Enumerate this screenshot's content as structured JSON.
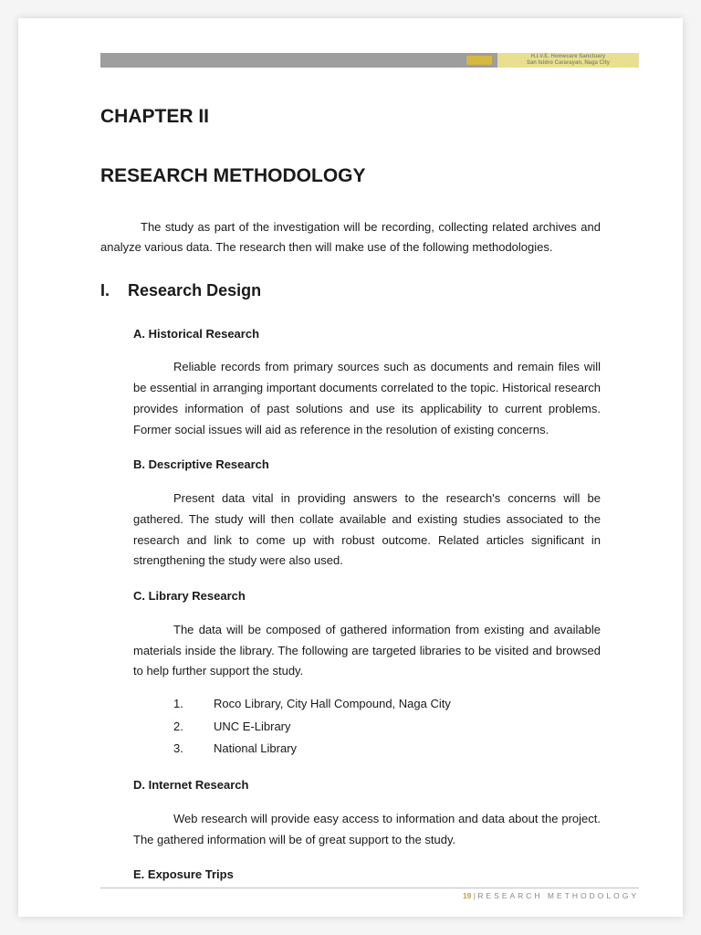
{
  "header": {
    "line1": "H.I.V.E. Homecare Sanctuary",
    "line2": "San Isidro Cararayan, Naga City"
  },
  "chapter": "CHAPTER II",
  "title": "RESEARCH METHODOLOGY",
  "intro": "The study as part of the investigation will be recording, collecting related archives and analyze various data. The research then will make use of the following methodologies.",
  "section": {
    "roman": "I.",
    "title": "Research Design"
  },
  "a": {
    "heading": "A. Historical Research",
    "body": "Reliable records from primary sources such as documents and remain files will be essential in arranging important documents correlated to the topic. Historical research provides information of past solutions and use its applicability to current problems. Former social issues will aid as reference in the resolution of existing concerns."
  },
  "b": {
    "heading": "B. Descriptive Research",
    "body": "Present data vital in providing answers to the research's concerns will be gathered. The study will then collate available and existing studies associated to the research and link to come up with robust outcome. Related articles significant in strengthening the study were also used."
  },
  "c": {
    "heading": "C. Library Research",
    "body": "The data will be composed of gathered information from existing and available materials inside the library. The following are targeted libraries to be visited and browsed to help further support the study.",
    "items": [
      {
        "n": "1.",
        "t": "Roco Library, City Hall Compound, Naga City"
      },
      {
        "n": "2.",
        "t": "UNC E-Library"
      },
      {
        "n": "3.",
        "t": "National Library"
      }
    ]
  },
  "d": {
    "heading": "D. Internet Research",
    "body": "Web research will provide easy access to information and data about the project. The gathered information will be of great support to the study."
  },
  "e": {
    "heading": "E. Exposure Trips"
  },
  "footer": {
    "page": "19",
    "bar": " | ",
    "label": "RESEARCH METHODOLOGY"
  }
}
